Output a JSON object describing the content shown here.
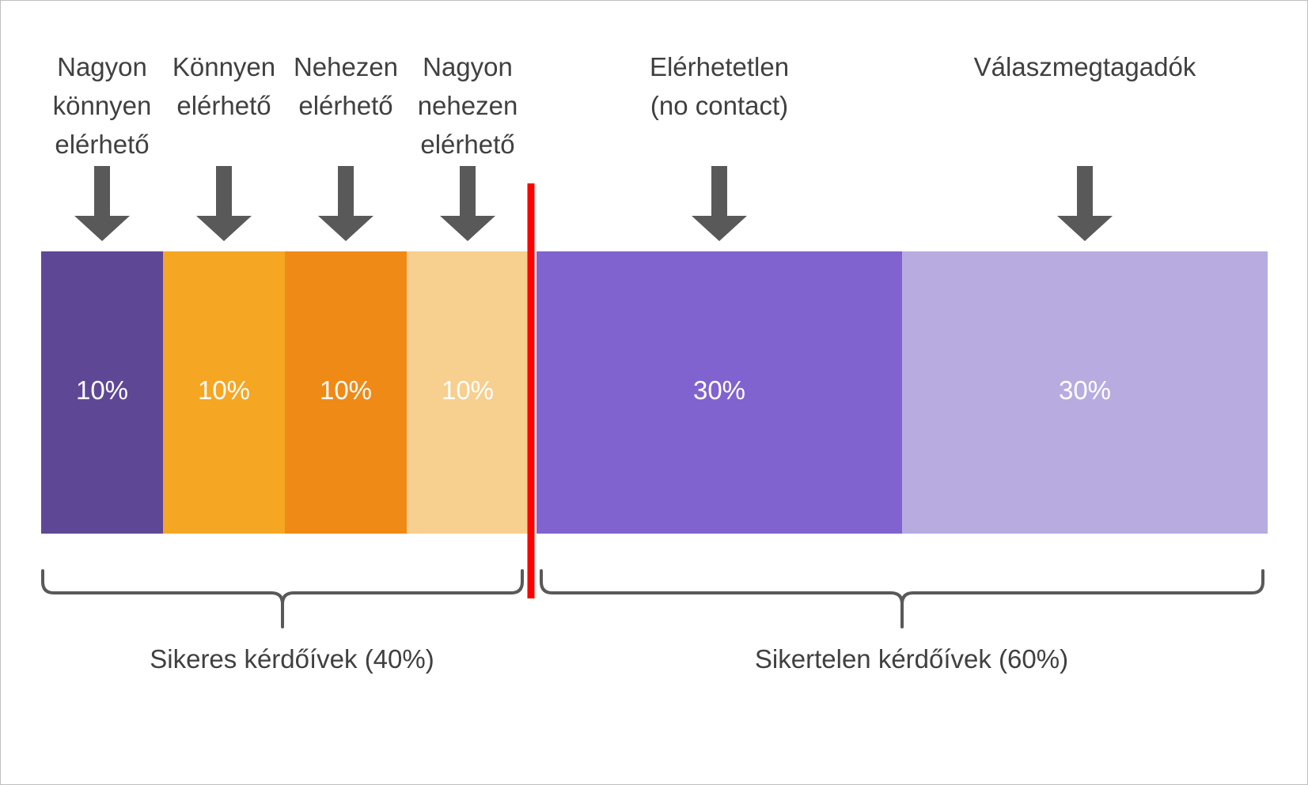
{
  "chart_data": {
    "type": "bar",
    "orientation": "horizontal-stacked",
    "categories": [
      "Nagyon könnyen elérhető",
      "Könnyen elérhető",
      "Nehezen elérhető",
      "Nagyon nehezen elérhető",
      "Elérhetetlen (no contact)",
      "Válaszmegtagadók"
    ],
    "label_lines": [
      [
        "Nagyon",
        "könnyen",
        "elérhető"
      ],
      [
        "Könnyen",
        "elérhető"
      ],
      [
        "Nehezen",
        "elérhető"
      ],
      [
        "Nagyon",
        "nehezen",
        "elérhető"
      ],
      [
        "Elérhetetlen",
        "(no contact)"
      ],
      [
        "Válaszmegtagadók"
      ]
    ],
    "values": [
      10,
      10,
      10,
      10,
      30,
      30
    ],
    "value_labels": [
      "10%",
      "10%",
      "10%",
      "10%",
      "30%",
      "30%"
    ],
    "colors": [
      "#5e4896",
      "#f5a623",
      "#ef8a17",
      "#f7cf8e",
      "#8063cf",
      "#b8abe0"
    ],
    "label_text_color": "#ffffff",
    "arrow_color": "#595959",
    "divider_color": "#ff0000",
    "divider_after_index": 3,
    "groups": [
      {
        "label": "Sikeres kérdőívek (40%)",
        "from": 0,
        "to": 3
      },
      {
        "label": "Sikertelen kérdőívek (60%)",
        "from": 4,
        "to": 5
      }
    ],
    "brace_color": "#595959",
    "total": 100
  }
}
